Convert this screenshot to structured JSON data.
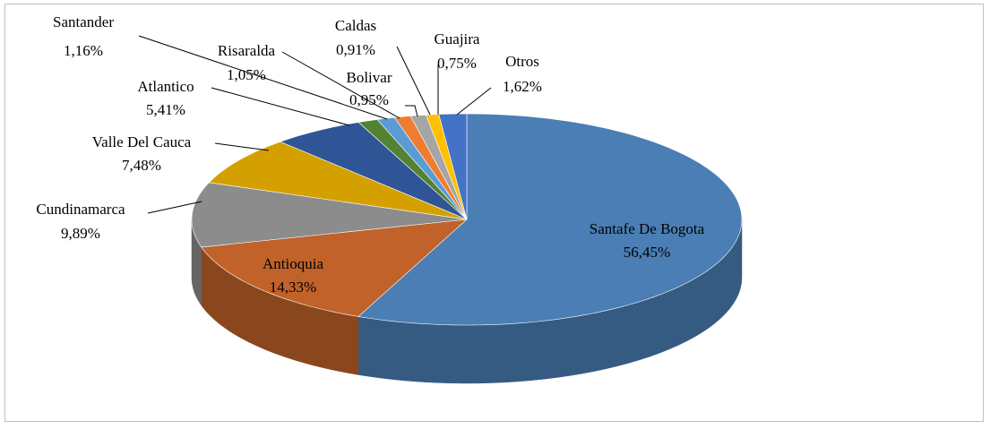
{
  "chart_data": {
    "type": "pie",
    "categories": [
      "Santafe De Bogota",
      "Antioquia",
      "Cundinamarca",
      "Valle Del Cauca",
      "Atlantico",
      "Santander",
      "Risaralda",
      "Bolivar",
      "Caldas",
      "Guajira",
      "Otros"
    ],
    "values": [
      56.45,
      14.33,
      9.89,
      7.48,
      5.41,
      1.16,
      1.05,
      0.95,
      0.91,
      0.75,
      1.62
    ],
    "value_labels": [
      "56,45%",
      "14,33%",
      "9,89%",
      "7,48%",
      "5,41%",
      "1,16%",
      "1,05%",
      "0,95%",
      "0,91%",
      "0,75%",
      "1,62%"
    ],
    "colors": [
      "#4a7eb4",
      "#c0622a",
      "#8c8c8c",
      "#d4a000",
      "#2f5597",
      "#548235",
      "#5b9bd5",
      "#ed7d31",
      "#a5a5a5",
      "#ffc000",
      "#4472c4"
    ]
  }
}
